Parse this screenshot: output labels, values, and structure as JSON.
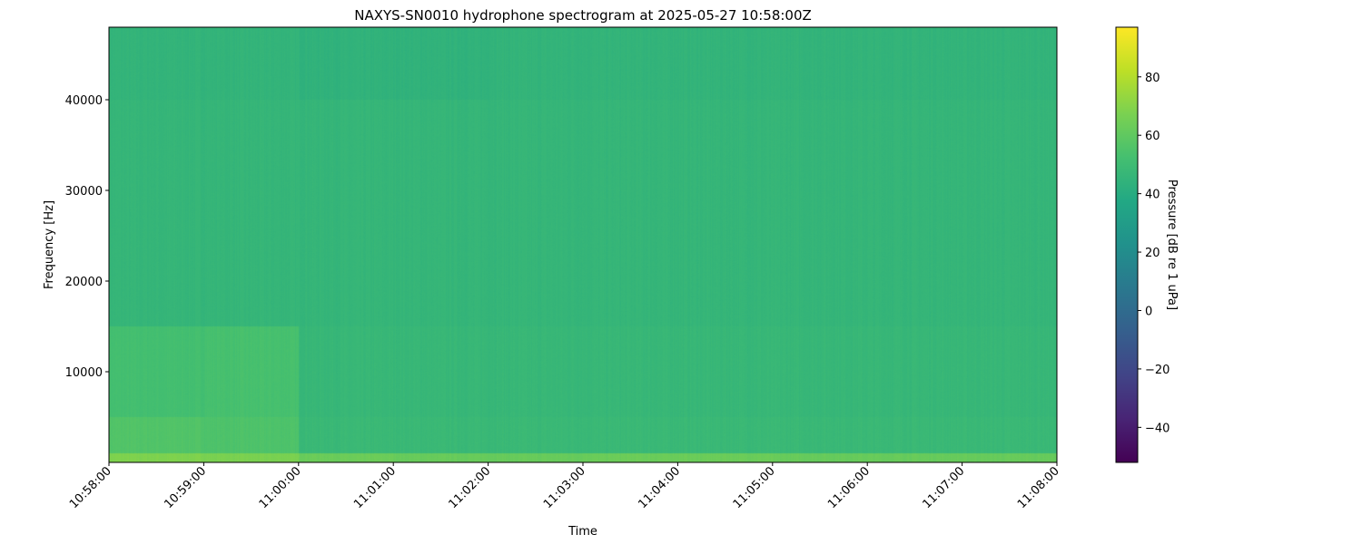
{
  "chart_data": {
    "type": "heatmap",
    "title": "NAXYS-SN0010 hydrophone spectrogram at 2025-05-27 10:58:00Z",
    "xlabel": "Time",
    "ylabel": "Frequency [Hz]",
    "colorbar_label": "Pressure [dB re 1 uPa]",
    "colormap": "viridis",
    "xlim": [
      "10:58:00",
      "11:08:00"
    ],
    "ylim": [
      0,
      48000
    ],
    "clim": [
      -52,
      97
    ],
    "x_ticks": [
      "10:58:00",
      "10:59:00",
      "11:00:00",
      "11:01:00",
      "11:02:00",
      "11:03:00",
      "11:04:00",
      "11:05:00",
      "11:06:00",
      "11:07:00",
      "11:08:00"
    ],
    "y_ticks": [
      10000,
      20000,
      30000,
      40000
    ],
    "colorbar_ticks": [
      -40,
      -20,
      0,
      20,
      40,
      60,
      80
    ],
    "grid": false,
    "time_bins": [
      "10:58",
      "10:59",
      "11:00",
      "11:01",
      "11:02",
      "11:03",
      "11:04",
      "11:05",
      "11:06",
      "11:07"
    ],
    "frequency_bands_hz": [
      [
        0,
        1000
      ],
      [
        1000,
        5000
      ],
      [
        5000,
        15000
      ],
      [
        15000,
        40000
      ],
      [
        40000,
        48000
      ]
    ],
    "z_db": [
      [
        68,
        67,
        63,
        62,
        62,
        63,
        63,
        62,
        62,
        62
      ],
      [
        56,
        55,
        48,
        48,
        48,
        48,
        48,
        48,
        48,
        48
      ],
      [
        52,
        53,
        47,
        47,
        47,
        47,
        47,
        47,
        47,
        47
      ],
      [
        46,
        46,
        46,
        46,
        46,
        46,
        46,
        46,
        46,
        46
      ],
      [
        45,
        45,
        44,
        44,
        45,
        45,
        45,
        45,
        45,
        45
      ]
    ]
  }
}
